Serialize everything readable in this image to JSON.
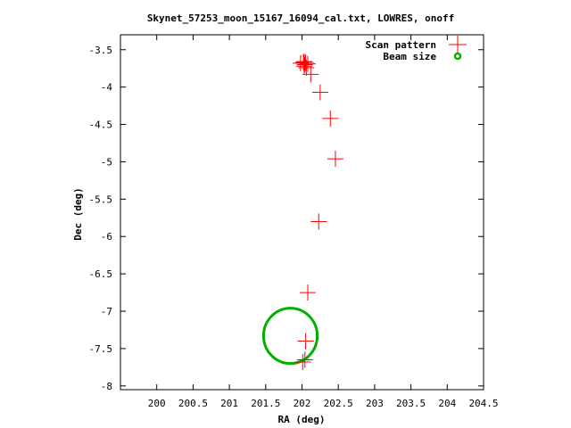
{
  "chart_data": {
    "type": "scatter",
    "title": "Skynet_57253_moon_15167_16094_cal.txt, LOWRES, onoff",
    "xlabel": "RA (deg)",
    "ylabel": "Dec (deg)",
    "xlim": [
      199.5,
      204.5
    ],
    "ylim": [
      -8.05,
      -3.3
    ],
    "x_ticks": [
      200,
      200.5,
      201,
      201.5,
      202,
      202.5,
      203,
      203.5,
      204,
      204.5
    ],
    "x_tick_labels": [
      "200",
      "200.5",
      "201",
      "201.5",
      "202",
      "202.5",
      "203",
      "203.5",
      "204",
      "204.5"
    ],
    "y_ticks": [
      -3.5,
      -4,
      -4.5,
      -5,
      -5.5,
      -6,
      -6.5,
      -7,
      -7.5,
      -8
    ],
    "y_tick_labels": [
      "-3.5",
      "-4",
      "-4.5",
      "-5",
      "-5.5",
      "-6",
      "-6.5",
      "-7",
      "-7.5",
      "-8"
    ],
    "grid": false,
    "legend_position": "top-right",
    "series": [
      {
        "name": "Scan pattern",
        "color": "#ff0000",
        "marker": "plus",
        "points": [
          {
            "x": 202.02,
            "y": -3.67
          },
          {
            "x": 202.05,
            "y": -3.67
          },
          {
            "x": 201.98,
            "y": -3.68
          },
          {
            "x": 202.04,
            "y": -3.7
          },
          {
            "x": 202.03,
            "y": -3.72
          },
          {
            "x": 202.06,
            "y": -3.74
          },
          {
            "x": 202.03,
            "y": -3.66
          },
          {
            "x": 202.08,
            "y": -3.69
          },
          {
            "x": 202.12,
            "y": -3.83
          },
          {
            "x": 202.25,
            "y": -4.07
          },
          {
            "x": 202.39,
            "y": -4.42
          },
          {
            "x": 202.46,
            "y": -4.96
          },
          {
            "x": 202.23,
            "y": -5.8
          },
          {
            "x": 202.08,
            "y": -6.75
          },
          {
            "x": 202.05,
            "y": -7.4
          },
          {
            "x": 202.04,
            "y": -7.65
          },
          {
            "x": 202.01,
            "y": -7.68
          }
        ]
      },
      {
        "name": "Beam size",
        "color": "#00b000",
        "marker": "circle",
        "center": {
          "x": 201.84,
          "y": -7.33
        },
        "radius_x": 0.37,
        "radius_y": 0.37
      }
    ]
  }
}
